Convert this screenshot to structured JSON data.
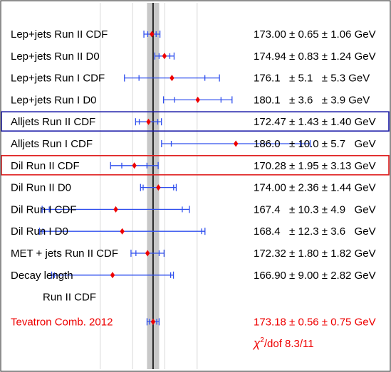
{
  "chart_data": {
    "type": "scatter",
    "title": "",
    "xlabel": "",
    "ylabel": "",
    "xlim": [
      160.5,
      189.4
    ],
    "central_band": {
      "center": 173.18,
      "half_width": 0.94
    },
    "grid_x": [
      165,
      170,
      175,
      180
    ],
    "measurements": [
      {
        "label": "Lep+jets Run II CDF",
        "value": 173.0,
        "stat": 0.65,
        "syst": 1.06,
        "text": "173.00 ± 0.65 ± 1.06 GeV"
      },
      {
        "label": "Lep+jets Run II D0",
        "value": 174.94,
        "stat": 0.83,
        "syst": 1.24,
        "text": "174.94 ± 0.83 ± 1.24 GeV"
      },
      {
        "label": "Lep+jets Run I CDF",
        "value": 176.1,
        "stat": 5.1,
        "syst": 5.3,
        "text": "176.1   ± 5.1   ± 5.3 GeV"
      },
      {
        "label": "Lep+jets Run I D0",
        "value": 180.1,
        "stat": 3.6,
        "syst": 3.9,
        "text": "180.1   ± 3.6   ± 3.9 GeV"
      },
      {
        "label": "Alljets Run II CDF",
        "value": 172.47,
        "stat": 1.43,
        "syst": 1.4,
        "text": "172.47 ± 1.43 ± 1.40 GeV",
        "box": "blue"
      },
      {
        "label": "Alljets Run I CDF",
        "value": 186.0,
        "stat": 10.0,
        "syst": 5.7,
        "text": "186.0   ± 10.0 ± 5.7   GeV"
      },
      {
        "label": "Dil Run II CDF",
        "value": 170.28,
        "stat": 1.95,
        "syst": 3.13,
        "text": "170.28 ± 1.95 ± 3.13 GeV",
        "box": "red"
      },
      {
        "label": "Dil Run II D0",
        "value": 174.0,
        "stat": 2.36,
        "syst": 1.44,
        "text": "174.00 ± 2.36 ± 1.44 GeV"
      },
      {
        "label": "Dil Run I CDF",
        "value": 167.4,
        "stat": 10.3,
        "syst": 4.9,
        "text": "167.4   ± 10.3 ± 4.9   GeV"
      },
      {
        "label": "Dil Run I D0",
        "value": 168.4,
        "stat": 12.3,
        "syst": 3.6,
        "text": "168.4   ± 12.3 ± 3.6   GeV"
      },
      {
        "label": "MET + jets Run II CDF",
        "value": 172.32,
        "stat": 1.8,
        "syst": 1.82,
        "text": "172.32 ± 1.80 ± 1.82 GeV"
      },
      {
        "label": "Decay length",
        "value": 166.9,
        "stat": 9.0,
        "syst": 2.82,
        "text": "166.90 ± 9.00 ± 2.82 GeV",
        "label2": "Run II CDF"
      }
    ],
    "combination": {
      "label": "Tevatron Comb.  2012",
      "value": 173.18,
      "stat": 0.56,
      "syst": 0.75,
      "text": "173.18 ± 0.56 ± 0.75 GeV",
      "chi2_symbol": "χ",
      "chi2_exp": "2",
      "chi2_rest": "/dof  8.3/11",
      "color": "#ee0000"
    },
    "colors": {
      "error_bar": "#3050ee",
      "marker": "#ee0000",
      "band": "#c8c8c8",
      "box_blue": "#1a1aa8",
      "box_red": "#e02020"
    },
    "grid": true,
    "legend": "none"
  }
}
